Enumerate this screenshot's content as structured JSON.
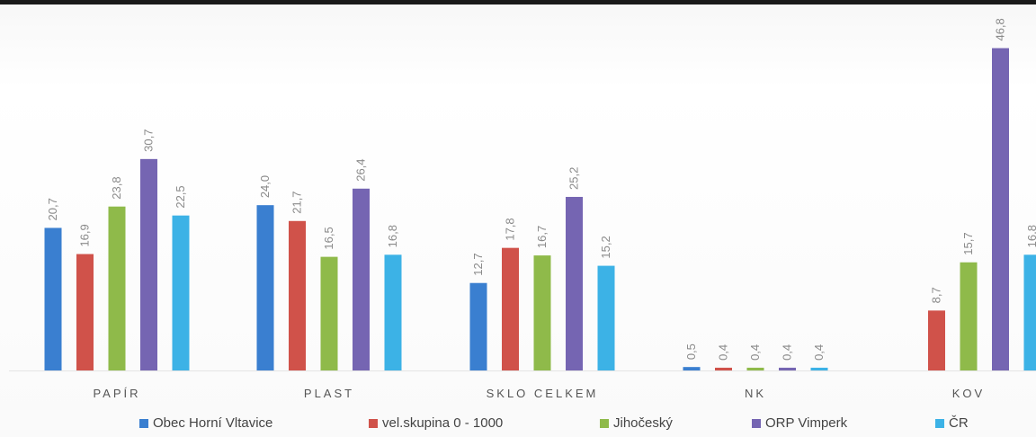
{
  "chart_data": {
    "type": "bar",
    "categories": [
      "PAPÍR",
      "PLAST",
      "SKLO CELKEM",
      "NK",
      "KOV"
    ],
    "series": [
      {
        "name": "Obec Horní Vltavice",
        "color": "#3a7fd0",
        "values": [
          20.7,
          24.0,
          12.7,
          0.5,
          null
        ]
      },
      {
        "name": "vel.skupina 0 - 1000",
        "color": "#d0524a",
        "values": [
          16.9,
          21.7,
          17.8,
          0.4,
          8.7
        ]
      },
      {
        "name": "Jihočeský",
        "color": "#8fba4a",
        "values": [
          23.8,
          16.5,
          16.7,
          0.4,
          15.7
        ]
      },
      {
        "name": "ORP Vimperk",
        "color": "#7565b2",
        "values": [
          30.7,
          26.4,
          25.2,
          0.4,
          46.8
        ]
      },
      {
        "name": "ČR",
        "color": "#3cb2e6",
        "values": [
          22.5,
          16.8,
          15.2,
          0.4,
          16.8
        ]
      }
    ],
    "value_labels": [
      [
        "20,7",
        "24,0",
        "12,7",
        "0,5",
        ""
      ],
      [
        "16,9",
        "21,7",
        "17,8",
        "0,4",
        "8,7"
      ],
      [
        "23,8",
        "16,5",
        "16,7",
        "0,4",
        "15,7"
      ],
      [
        "30,7",
        "26,4",
        "25,2",
        "0,4",
        "46,8"
      ],
      [
        "22,5",
        "16,8",
        "15,2",
        "0,4",
        "16,8"
      ]
    ],
    "ylim": [
      0,
      47
    ],
    "grid": false,
    "legend_position": "bottom"
  }
}
